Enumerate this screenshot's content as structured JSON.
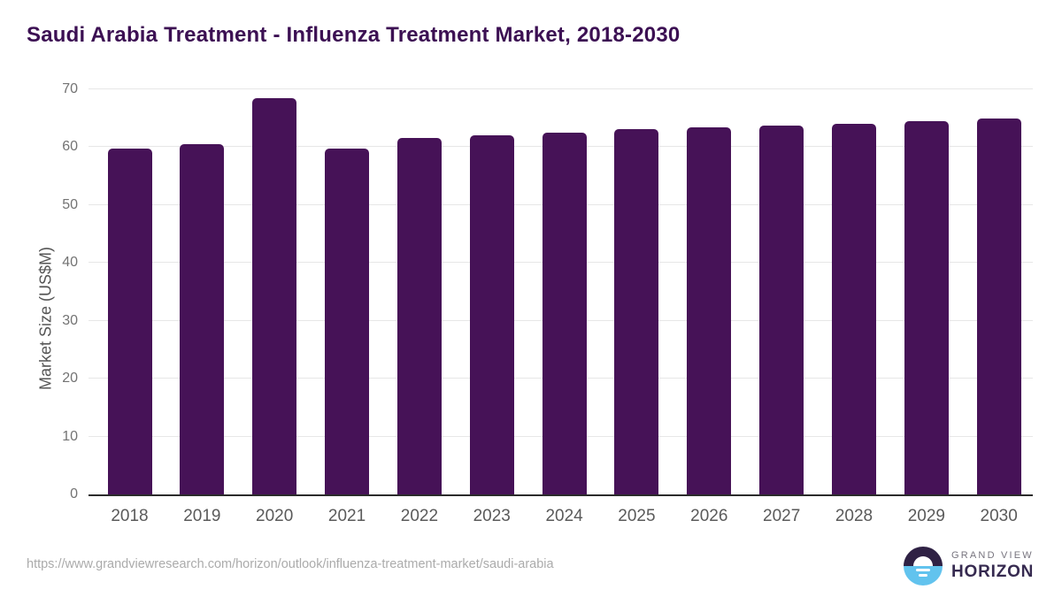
{
  "title": "Saudi Arabia Treatment - Influenza Treatment Market, 2018-2030",
  "chart_data": {
    "type": "bar",
    "title": "Saudi Arabia Treatment - Influenza Treatment Market, 2018-2030",
    "categories": [
      "2018",
      "2019",
      "2020",
      "2021",
      "2022",
      "2023",
      "2024",
      "2025",
      "2026",
      "2027",
      "2028",
      "2029",
      "2030"
    ],
    "values": [
      59.7,
      60.5,
      68.5,
      59.8,
      61.6,
      62.0,
      62.5,
      63.2,
      63.4,
      63.8,
      64.1,
      64.5,
      64.9
    ],
    "xlabel": "",
    "ylabel": "Market Size (US$M)",
    "ylim": [
      0,
      70
    ],
    "yticks": [
      0,
      10,
      20,
      30,
      40,
      50,
      60,
      70
    ],
    "grid": "horizontal",
    "legend": "none",
    "bar_color": "#461257"
  },
  "footer": {
    "source_url": "https://www.grandviewresearch.com/horizon/outlook/influenza-treatment-market/saudi-arabia",
    "logo": {
      "line1": "GRAND VIEW",
      "line2": "HORIZON"
    }
  },
  "colors": {
    "title_text": "#3c1053",
    "bar": "#461257",
    "gridline": "#e7e7e7",
    "baseline": "#2b2b2b",
    "y_tick_text": "#737373",
    "x_tick_text": "#5a5a5a",
    "axis_title_text": "#555555",
    "footer_text": "#ababab",
    "logo_purple": "#2f2144",
    "logo_blue": "#62c3ee",
    "logo_text_dark": "#362a50",
    "logo_text_gray": "#77747e"
  }
}
